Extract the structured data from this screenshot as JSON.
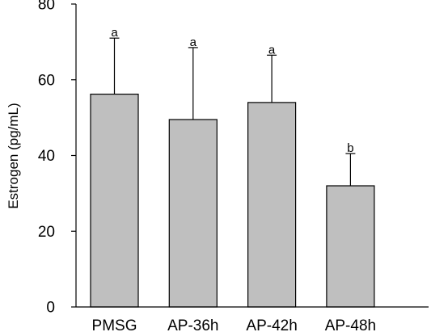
{
  "chart_data": {
    "type": "bar",
    "title": "",
    "xlabel": "",
    "ylabel": "Estrogen (pg/mL)",
    "categories": [
      "PMSG",
      "AP-36h",
      "AP-42h",
      "AP-48h"
    ],
    "values": [
      56.2,
      49.5,
      54,
      32
    ],
    "error_upper": [
      71,
      68.5,
      66.5,
      40.5
    ],
    "significance": [
      "a",
      "a",
      "a",
      "b"
    ],
    "ylim": [
      0,
      80
    ],
    "yticks": [
      0,
      20,
      40,
      60,
      80
    ],
    "grid": false,
    "legend": "none",
    "bar_color": "#bfbfbf",
    "bar_edge_color": "#000000"
  }
}
